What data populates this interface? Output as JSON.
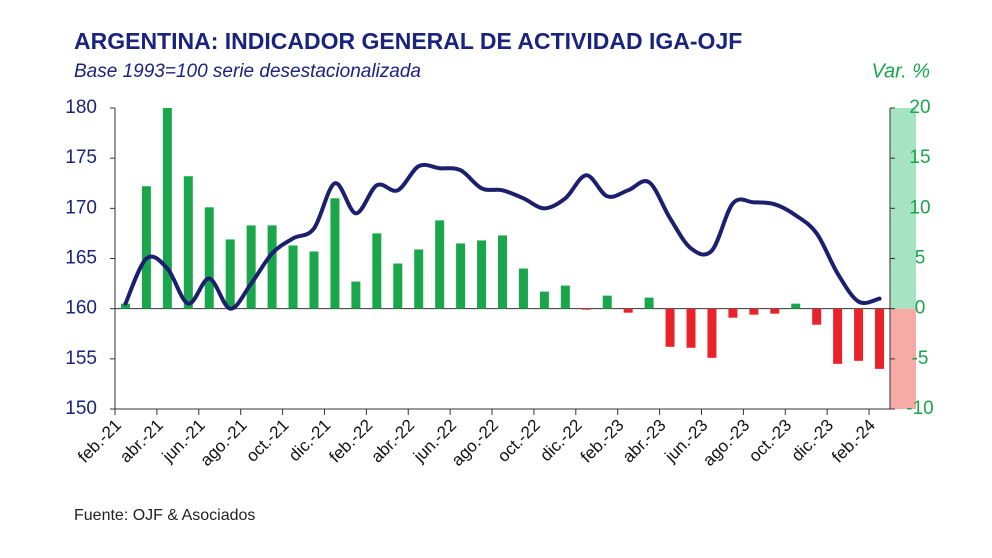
{
  "chart_data": {
    "type": "bar_line",
    "title": "ARGENTINA: INDICADOR GENERAL DE ACTIVIDAD IGA-OJF",
    "subtitle": "Base 1993=100 serie desestacionalizada",
    "y2_label": "Var. %",
    "source": "Fuente: OJF & Asociados",
    "categories": [
      "feb.-21",
      null,
      "abr.-21",
      null,
      "jun.-21",
      null,
      "ago.-21",
      null,
      "oct.-21",
      null,
      "dic.-21",
      null,
      "feb.-22",
      null,
      "abr.-22",
      null,
      "jun.-22",
      null,
      "ago.-22",
      null,
      "oct.-22",
      null,
      "dic.-22",
      null,
      "feb.-23",
      null,
      "abr.-23",
      null,
      "jun.-23",
      null,
      "ago.-23",
      null,
      "oct.-23",
      null,
      "dic.-23",
      null,
      "feb.-24"
    ],
    "series": [
      {
        "type": "bar",
        "axis": "y2",
        "color": "#1aa64b",
        "negative_color": "#e8242a",
        "values": [
          0.5,
          12.2,
          20,
          13.2,
          10.1,
          6.9,
          8.3,
          8.3,
          6.3,
          5.7,
          11,
          2.7,
          7.5,
          4.5,
          5.9,
          8.8,
          6.5,
          6.8,
          7.3,
          4,
          1.7,
          2.3,
          -0.1,
          1.3,
          -0.4,
          1.1,
          -3.8,
          -3.9,
          -4.9,
          -0.9,
          -0.6,
          -0.5,
          0.5,
          -1.6,
          -5.5,
          -5.2,
          -6
        ]
      },
      {
        "type": "line",
        "axis": "y",
        "color": "#1b1f6e",
        "values": [
          160.5,
          165,
          164,
          160.5,
          163,
          160,
          162.5,
          165.5,
          167,
          168,
          172.5,
          169.5,
          172.3,
          171.8,
          174.2,
          174,
          173.8,
          172,
          171.8,
          171,
          170,
          171,
          173.3,
          171.2,
          171.8,
          172.6,
          169,
          166,
          165.8,
          170.5,
          170.6,
          170.4,
          169.3,
          167.5,
          163.5,
          160.7,
          161
        ]
      }
    ],
    "ylim": [
      150,
      180
    ],
    "yticks": [
      150,
      155,
      160,
      165,
      170,
      175,
      180
    ],
    "y2lim": [
      -10,
      20
    ],
    "y2ticks": [
      -10,
      -5,
      0,
      5,
      10,
      15,
      20
    ],
    "y2_band_colors": [
      "#f6aba6",
      "#a6e3c3"
    ],
    "grid": false
  }
}
